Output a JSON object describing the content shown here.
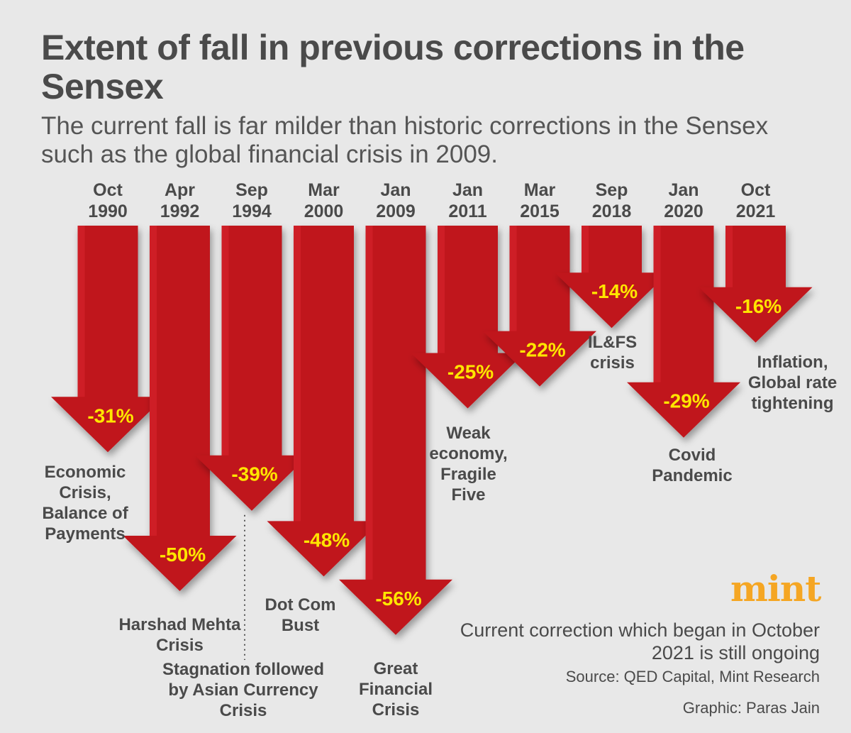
{
  "title": "Extent of fall in previous corrections in the Sensex",
  "subtitle": "The current fall is far milder than historic corrections in the Sensex such as the global financial crisis in 2009.",
  "chart_data": {
    "type": "bar",
    "orientation": "downward-arrows",
    "categories": [
      [
        "Oct",
        "1990"
      ],
      [
        "Apr",
        "1992"
      ],
      [
        "Sep",
        "1994"
      ],
      [
        "Mar",
        "2000"
      ],
      [
        "Jan",
        "2009"
      ],
      [
        "Jan",
        "2011"
      ],
      [
        "Mar",
        "2015"
      ],
      [
        "Sep",
        "2018"
      ],
      [
        "Jan",
        "2020"
      ],
      [
        "Oct",
        "2021"
      ]
    ],
    "values": [
      -31,
      -50,
      -39,
      -48,
      -56,
      -25,
      -22,
      -14,
      -29,
      -16
    ],
    "value_labels": [
      "-31%",
      "-50%",
      "-39%",
      "-48%",
      "-56%",
      "-25%",
      "-22%",
      "-14%",
      "-29%",
      "-16%"
    ],
    "events": [
      [
        "Economic",
        "Crisis,",
        "Balance of",
        "Payments"
      ],
      [
        "Harshad Mehta",
        "Crisis"
      ],
      [
        "Stagnation followed",
        "by Asian Currency",
        "Crisis"
      ],
      [
        "Dot Com",
        "Bust"
      ],
      [
        "Great",
        "Financial",
        "Crisis"
      ],
      [
        "Weak",
        "economy,",
        "Fragile",
        "Five"
      ],
      [],
      [
        "IL&FS",
        "crisis"
      ],
      [
        "Covid",
        "Pandemic"
      ],
      [
        "Inflation,",
        "Global rate",
        "tightening"
      ]
    ],
    "unit": "%",
    "colors": {
      "arrow": "#c0141c",
      "arrow_light": "#d7252d",
      "value": "#ffe600",
      "text": "#4a4a4a"
    }
  },
  "logo": "mint",
  "note": "Current correction which began in October 2021 is still ongoing",
  "source": "Source: QED Capital, Mint Research",
  "credit": "Graphic: Paras Jain"
}
